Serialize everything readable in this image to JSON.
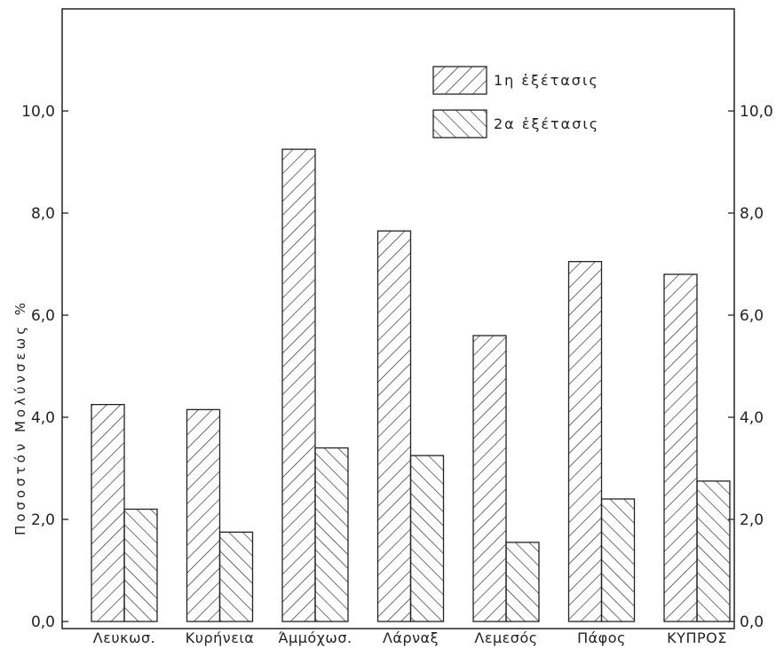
{
  "chart_data": {
    "type": "bar",
    "title": "",
    "xlabel": "",
    "ylabel": "Ποσοστόν Μολύνσεως %",
    "ylim": [
      0,
      12
    ],
    "yticks": [
      "0,0",
      "2,0",
      "4,0",
      "6,0",
      "8,0",
      "10,0"
    ],
    "ytick_values": [
      0,
      2,
      4,
      6,
      8,
      10
    ],
    "grid": false,
    "legend_position": "top-right",
    "categories": [
      "Λευκωσ.",
      "Κυρήνεια",
      "Άμμόχωσ.",
      "Λάρναξ",
      "Λεμεσός",
      "Πάφος",
      "ΚΥΠΡΟΣ"
    ],
    "series": [
      {
        "name": "1η ἐξέτασις",
        "values": [
          4.25,
          4.15,
          9.25,
          7.65,
          5.6,
          7.05,
          6.8
        ]
      },
      {
        "name": "2α ἐξέτασις",
        "values": [
          2.2,
          1.75,
          3.4,
          3.25,
          1.55,
          2.4,
          2.75
        ]
      }
    ]
  }
}
